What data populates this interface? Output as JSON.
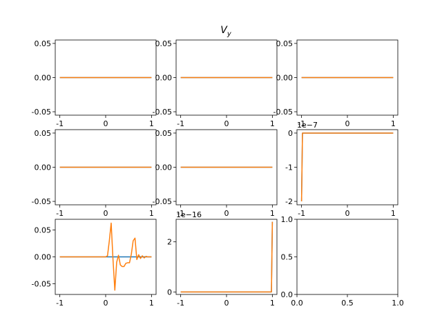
{
  "figure": {
    "title": "V",
    "title_subscript": "y"
  },
  "chart_data": [
    {
      "type": "line",
      "xlim": [
        -1.1,
        1.1
      ],
      "ylim": [
        -0.055,
        0.055
      ],
      "xticks": [
        "-1",
        "0",
        "1"
      ],
      "xtick_values": [
        -1,
        0,
        1
      ],
      "yticks": [
        "0.05",
        "0.00",
        "-0.05"
      ],
      "ytick_values": [
        0.05,
        0,
        -0.05
      ],
      "offset_text": "",
      "series": [
        {
          "color": "#1f77b4",
          "x": [
            -1,
            1
          ],
          "y": [
            0,
            0
          ]
        },
        {
          "color": "#ff7f0e",
          "x": [
            -1,
            1
          ],
          "y": [
            0,
            0
          ]
        }
      ]
    },
    {
      "type": "line",
      "xlim": [
        -1.1,
        1.1
      ],
      "ylim": [
        -0.055,
        0.055
      ],
      "xticks": [
        "-1",
        "0",
        "1"
      ],
      "xtick_values": [
        -1,
        0,
        1
      ],
      "yticks": [
        "0.05",
        "0.00",
        "-0.05"
      ],
      "ytick_values": [
        0.05,
        0,
        -0.05
      ],
      "offset_text": "",
      "series": [
        {
          "color": "#1f77b4",
          "x": [
            -1,
            1
          ],
          "y": [
            0,
            0
          ]
        },
        {
          "color": "#ff7f0e",
          "x": [
            -1,
            1
          ],
          "y": [
            0,
            0
          ]
        }
      ]
    },
    {
      "type": "line",
      "xlim": [
        -1.1,
        1.1
      ],
      "ylim": [
        -0.055,
        0.055
      ],
      "xticks": [
        "-1",
        "0",
        "1"
      ],
      "xtick_values": [
        -1,
        0,
        1
      ],
      "yticks": [
        "0.05",
        "0.00",
        "-0.05"
      ],
      "ytick_values": [
        0.05,
        0,
        -0.05
      ],
      "offset_text": "",
      "series": [
        {
          "color": "#1f77b4",
          "x": [
            -1,
            1
          ],
          "y": [
            0,
            0
          ]
        },
        {
          "color": "#ff7f0e",
          "x": [
            -1,
            1
          ],
          "y": [
            0,
            0
          ]
        }
      ]
    },
    {
      "type": "line",
      "xlim": [
        -1.1,
        1.1
      ],
      "ylim": [
        -0.055,
        0.055
      ],
      "xticks": [
        "-1",
        "0",
        "1"
      ],
      "xtick_values": [
        -1,
        0,
        1
      ],
      "yticks": [
        "0.05",
        "0.00",
        "-0.05"
      ],
      "ytick_values": [
        0.05,
        0,
        -0.05
      ],
      "offset_text": "",
      "series": [
        {
          "color": "#1f77b4",
          "x": [
            -1,
            1
          ],
          "y": [
            0,
            0
          ]
        },
        {
          "color": "#ff7f0e",
          "x": [
            -1,
            1
          ],
          "y": [
            0,
            0
          ]
        }
      ]
    },
    {
      "type": "line",
      "xlim": [
        -1.1,
        1.1
      ],
      "ylim": [
        -0.055,
        0.055
      ],
      "xticks": [
        "-1",
        "0",
        "1"
      ],
      "xtick_values": [
        -1,
        0,
        1
      ],
      "yticks": [
        "0.05",
        "0.00",
        "-0.05"
      ],
      "ytick_values": [
        0.05,
        0,
        -0.05
      ],
      "offset_text": "",
      "series": [
        {
          "color": "#1f77b4",
          "x": [
            -1,
            1
          ],
          "y": [
            0,
            0
          ]
        },
        {
          "color": "#ff7f0e",
          "x": [
            -1,
            1
          ],
          "y": [
            0,
            0
          ]
        }
      ]
    },
    {
      "type": "line",
      "xlim": [
        -1.1,
        1.1
      ],
      "ylim": [
        -2.1,
        0.1
      ],
      "xticks": [
        "-1",
        "0",
        "1"
      ],
      "xtick_values": [
        -1,
        0,
        1
      ],
      "yticks": [
        "0",
        "-1",
        "-2"
      ],
      "ytick_values": [
        0,
        -1,
        -2
      ],
      "offset_text": "1e−7",
      "series": [
        {
          "color": "#1f77b4",
          "x": [
            -1,
            -0.98,
            1
          ],
          "y": [
            -2.0,
            0,
            0
          ]
        },
        {
          "color": "#ff7f0e",
          "x": [
            -1,
            -0.98,
            1
          ],
          "y": [
            -2.0,
            0,
            0
          ]
        }
      ]
    },
    {
      "type": "line",
      "xlim": [
        -1.1,
        1.1
      ],
      "ylim": [
        -0.07,
        0.07
      ],
      "xticks": [
        "-1",
        "0",
        "1"
      ],
      "xtick_values": [
        -1,
        0,
        1
      ],
      "yticks": [
        "0.05",
        "0.00",
        "-0.05"
      ],
      "ytick_values": [
        0.05,
        0,
        -0.05
      ],
      "offset_text": "",
      "series": [
        {
          "color": "#1f77b4",
          "x": [
            -1,
            1
          ],
          "y": [
            0,
            0
          ]
        },
        {
          "color": "#ff7f0e",
          "x": [
            -1,
            0,
            0.04,
            0.08,
            0.12,
            0.16,
            0.2,
            0.24,
            0.28,
            0.32,
            0.36,
            0.4,
            0.44,
            0.48,
            0.52,
            0.56,
            0.6,
            0.64,
            0.68,
            0.72,
            0.76,
            0.8,
            0.84,
            0.88,
            0.92,
            0.96,
            1
          ],
          "y": [
            0,
            0,
            0.002,
            0.03,
            0.063,
            -0.005,
            -0.062,
            -0.01,
            0.003,
            -0.015,
            -0.018,
            -0.018,
            -0.012,
            -0.011,
            -0.011,
            0.005,
            0.03,
            0.035,
            -0.005,
            0.004,
            -0.003,
            0.002,
            -0.002,
            0.001,
            0,
            0,
            0
          ]
        }
      ]
    },
    {
      "type": "line",
      "xlim": [
        -1.1,
        1.1
      ],
      "ylim": [
        -0.1,
        2.9
      ],
      "xticks": [
        "-1",
        "0",
        "1"
      ],
      "xtick_values": [
        -1,
        0,
        1
      ],
      "yticks": [
        "2",
        "0"
      ],
      "ytick_values": [
        2,
        0
      ],
      "offset_text": "1e−16",
      "series": [
        {
          "color": "#1f77b4",
          "x": [
            -1,
            0.98,
            1
          ],
          "y": [
            0,
            0,
            2.8
          ]
        },
        {
          "color": "#ff7f0e",
          "x": [
            -1,
            0.98,
            1
          ],
          "y": [
            0,
            0,
            2.8
          ]
        }
      ]
    },
    {
      "type": "line",
      "xlim": [
        0,
        1
      ],
      "ylim": [
        0,
        1
      ],
      "xticks": [
        "0.0",
        "0.5",
        "1.0"
      ],
      "xtick_values": [
        0,
        0.5,
        1
      ],
      "yticks": [
        "1.0",
        "0.5",
        "0.0"
      ],
      "ytick_values": [
        1,
        0.5,
        0
      ],
      "offset_text": "",
      "series": []
    }
  ]
}
